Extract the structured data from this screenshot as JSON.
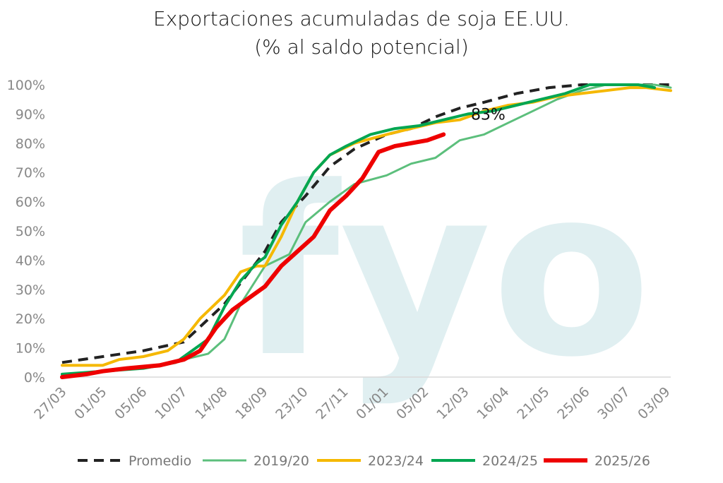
{
  "chart_data": {
    "type": "line",
    "title": "Exportaciones acumuladas de soja EE.UU.",
    "subtitle": "(% al saldo potencial)",
    "xlabel": "",
    "ylabel": "",
    "ylim": [
      0,
      100
    ],
    "y_ticks": [
      0,
      10,
      20,
      30,
      40,
      50,
      60,
      70,
      80,
      90,
      100
    ],
    "y_tick_labels": [
      "0%",
      "10%",
      "20%",
      "30%",
      "40%",
      "50%",
      "60%",
      "70%",
      "80%",
      "90%",
      "100%"
    ],
    "x_tick_labels": [
      "27/03",
      "01/05",
      "05/06",
      "10/07",
      "14/08",
      "18/09",
      "23/10",
      "27/11",
      "01/01",
      "05/02",
      "12/03",
      "16/04",
      "21/05",
      "25/06",
      "30/07",
      "03/09"
    ],
    "x_range_weeks": [
      0,
      75
    ],
    "x_unit_note": "",
    "grid": false,
    "legend_position": "bottom",
    "annotation": {
      "text": "83%",
      "x_week": 52.5,
      "y": 88
    },
    "watermark": "fyo",
    "series": [
      {
        "name": "Promedio",
        "color": "#222222",
        "style": "dashed",
        "width": 4,
        "x": [
          0,
          5,
          10,
          15,
          20,
          25,
          27,
          30,
          33,
          36,
          40,
          43,
          46,
          49,
          52,
          56,
          60,
          64,
          68,
          72,
          75
        ],
        "y": [
          5,
          7,
          9,
          12,
          25,
          43,
          53,
          62,
          72,
          78,
          83,
          85,
          89,
          92,
          94,
          97,
          99,
          100,
          100,
          100,
          100
        ]
      },
      {
        "name": "2019/20",
        "color": "#5cbf7c",
        "style": "solid",
        "width": 3,
        "x": [
          0,
          5,
          10,
          15,
          18,
          20,
          22,
          25,
          28,
          30,
          33,
          36,
          40,
          43,
          46,
          49,
          52,
          55,
          58,
          61,
          64,
          67,
          70,
          73,
          75
        ],
        "y": [
          1,
          2,
          3,
          6,
          8,
          13,
          25,
          38,
          42,
          53,
          60,
          66,
          69,
          73,
          75,
          81,
          83,
          87,
          91,
          95,
          98,
          100,
          100,
          100,
          99
        ]
      },
      {
        "name": "2023/24",
        "color": "#f5b800",
        "style": "solid",
        "width": 4,
        "x": [
          0,
          5,
          7,
          10,
          13,
          15,
          17,
          20,
          22,
          24,
          25,
          27,
          29,
          31,
          33,
          36,
          40,
          43,
          46,
          49,
          52,
          55,
          58,
          61,
          64,
          67,
          70,
          72,
          75
        ],
        "y": [
          4,
          4,
          6,
          7,
          9,
          13,
          20,
          28,
          36,
          38,
          38,
          48,
          60,
          70,
          76,
          80,
          83,
          85,
          87,
          88,
          91,
          93,
          94,
          96,
          97,
          98,
          99,
          99,
          98
        ]
      },
      {
        "name": "2024/25",
        "color": "#00a651",
        "style": "solid",
        "width": 4,
        "x": [
          0,
          5,
          10,
          14,
          18,
          20,
          22,
          24,
          25,
          27,
          29,
          31,
          33,
          35,
          38,
          41,
          44,
          47,
          50,
          53,
          56,
          59,
          62,
          65,
          68,
          71,
          73
        ],
        "y": [
          1,
          2,
          3,
          5,
          13,
          24,
          33,
          39,
          41,
          52,
          60,
          70,
          76,
          79,
          83,
          85,
          86,
          88,
          90,
          91,
          93,
          95,
          97,
          100,
          100,
          100,
          99
        ]
      },
      {
        "name": "2025/26",
        "color": "#ee0000",
        "style": "solid",
        "width": 6,
        "x": [
          0,
          3,
          5,
          8,
          12,
          15,
          17,
          19,
          21,
          23,
          25,
          27,
          29,
          31,
          33,
          35,
          37,
          39,
          41,
          43,
          45,
          47
        ],
        "y": [
          0,
          1,
          2,
          3,
          4,
          6,
          9,
          17,
          23,
          27,
          31,
          38,
          43,
          48,
          57,
          62,
          68,
          77,
          79,
          80,
          81,
          83
        ]
      }
    ]
  }
}
